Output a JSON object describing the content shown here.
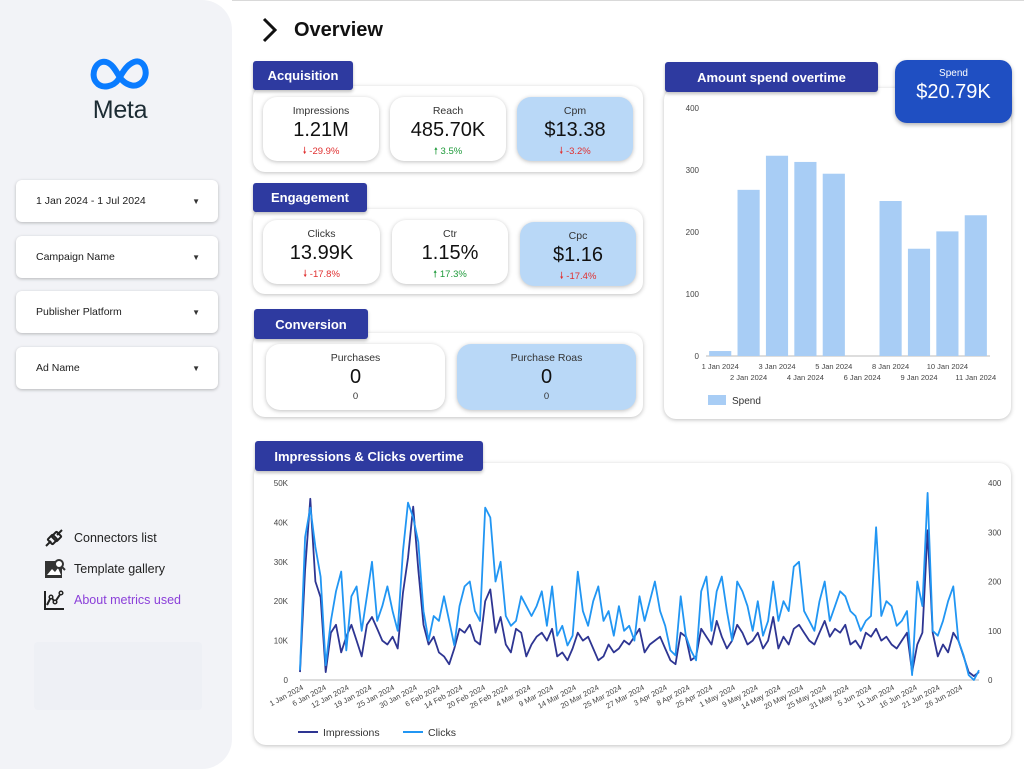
{
  "sidebar": {
    "logo_text": "Meta",
    "filters": [
      "1 Jan 2024 - 1 Jul 2024",
      "Campaign Name",
      "Publisher Platform",
      "Ad Name"
    ],
    "links": [
      {
        "label": "Connectors list",
        "icon": "connector-icon"
      },
      {
        "label": "Template gallery",
        "icon": "gallery-icon"
      },
      {
        "label": "About metrics used",
        "icon": "metrics-chart-icon"
      }
    ]
  },
  "header": {
    "title": "Overview"
  },
  "acquisition": {
    "title": "Acquisition",
    "cards": [
      {
        "label": "Impressions",
        "value": "1.21M",
        "change": "-29.9%",
        "dir": "down"
      },
      {
        "label": "Reach",
        "value": "485.70K",
        "change": "3.5%",
        "dir": "up"
      },
      {
        "label": "Cpm",
        "value": "$13.38",
        "change": "-3.2%",
        "dir": "down"
      }
    ]
  },
  "engagement": {
    "title": "Engagement",
    "cards": [
      {
        "label": "Clicks",
        "value": "13.99K",
        "change": "-17.8%",
        "dir": "down"
      },
      {
        "label": "Ctr",
        "value": "1.15%",
        "change": "17.3%",
        "dir": "up"
      },
      {
        "label": "Cpc",
        "value": "$1.16",
        "change": "-17.4%",
        "dir": "down"
      }
    ]
  },
  "conversion": {
    "title": "Conversion",
    "cards": [
      {
        "label": "Purchases",
        "value": "0",
        "sub": "0"
      },
      {
        "label": "Purchase Roas",
        "value": "0",
        "sub": "0"
      }
    ]
  },
  "spend_kpi": {
    "label": "Spend",
    "value": "$20.79K"
  },
  "colors": {
    "accent": "#2e3aa0",
    "bar": "#a8cdf5",
    "impressions": "#2e3592",
    "clicks": "#2196f3",
    "down": "#e03030",
    "up": "#1e9a3a"
  },
  "chart_data": [
    {
      "type": "bar",
      "title": "Amount spend overtime",
      "categories": [
        "1 Jan 2024",
        "2 Jan 2024",
        "3 Jan 2024",
        "4 Jan 2024",
        "5 Jan 2024",
        "6 Jan 2024",
        "8 Jan 2024",
        "9 Jan 2024",
        "10 Jan 2024",
        "11 Jan 2024"
      ],
      "series": [
        {
          "name": "Spend",
          "values": [
            8,
            268,
            323,
            313,
            294,
            0,
            250,
            173,
            201,
            227
          ]
        }
      ],
      "ylim": [
        0,
        400
      ],
      "yticks": [
        0,
        100,
        200,
        300,
        400
      ],
      "legend": "bottom-left"
    },
    {
      "type": "line",
      "title": "Impressions & Clicks overtime",
      "xticks": [
        "1 Jan 2024",
        "6 Jan 2024",
        "12 Jan 2024",
        "19 Jan 2024",
        "25 Jan 2024",
        "30 Jan 2024",
        "6 Feb 2024",
        "14 Feb 2024",
        "20 Feb 2024",
        "26 Feb 2024",
        "4 Mar 2024",
        "9 Mar 2024",
        "14 Mar 2024",
        "20 Mar 2024",
        "25 Mar 2024",
        "27 Mar 2024",
        "3 Apr 2024",
        "8 Apr 2024",
        "25 Apr 2024",
        "1 May 2024",
        "9 May 2024",
        "14 May 2024",
        "20 May 2024",
        "25 May 2024",
        "31 May 2024",
        "5 Jun 2024",
        "11 Jun 2024",
        "16 Jun 2024",
        "21 Jun 2024",
        "26 Jun 2024"
      ],
      "y_left_ticks": [
        "0",
        "10K",
        "20K",
        "30K",
        "40K",
        "50K"
      ],
      "y_right_ticks": [
        "0",
        "100",
        "200",
        "300",
        "400"
      ],
      "ylim_left": [
        0,
        50000
      ],
      "ylim_right": [
        0,
        400
      ],
      "series": [
        {
          "name": "Impressions",
          "axis": "left",
          "values": [
            2000,
            28000,
            46000,
            25000,
            21000,
            2000,
            12000,
            14000,
            7000,
            11000,
            14000,
            10000,
            6000,
            14000,
            16000,
            13000,
            10000,
            9000,
            11000,
            8000,
            22000,
            31000,
            44000,
            28000,
            14000,
            9000,
            11000,
            7000,
            6000,
            4000,
            8000,
            13000,
            12000,
            14000,
            10000,
            9000,
            20000,
            23000,
            12000,
            16000,
            9000,
            7000,
            13000,
            12000,
            6000,
            9000,
            11000,
            12000,
            10000,
            13000,
            6000,
            7000,
            5000,
            8000,
            12000,
            10000,
            11000,
            8000,
            5000,
            6000,
            9000,
            7000,
            8000,
            10000,
            9000,
            11000,
            13000,
            7000,
            9000,
            10000,
            11000,
            8000,
            5000,
            4000,
            12000,
            11000,
            5000,
            6000,
            13000,
            11000,
            9000,
            15000,
            11000,
            8000,
            10000,
            14000,
            12000,
            9000,
            10000,
            12000,
            8000,
            10000,
            16000,
            8000,
            11000,
            9000,
            13000,
            14000,
            12000,
            10000,
            9000,
            12000,
            15000,
            11000,
            13000,
            12000,
            14000,
            9000,
            10000,
            8000,
            12000,
            11000,
            13000,
            10000,
            11000,
            9000,
            8000,
            10000,
            12000,
            2000,
            9000,
            12000,
            38000,
            12000,
            6000,
            9000,
            7000,
            12000,
            10000,
            6000,
            2000,
            1000,
            2000
          ]
        },
        {
          "name": "Clicks",
          "axis": "right",
          "values": [
            20,
            290,
            350,
            270,
            210,
            30,
            120,
            180,
            220,
            60,
            170,
            190,
            100,
            170,
            240,
            120,
            150,
            190,
            140,
            100,
            260,
            360,
            330,
            280,
            140,
            80,
            130,
            120,
            170,
            120,
            70,
            150,
            190,
            200,
            140,
            120,
            350,
            330,
            200,
            240,
            130,
            110,
            120,
            170,
            150,
            130,
            150,
            180,
            110,
            190,
            90,
            110,
            70,
            90,
            220,
            140,
            110,
            160,
            190,
            120,
            140,
            90,
            150,
            100,
            110,
            80,
            170,
            120,
            160,
            200,
            140,
            110,
            60,
            50,
            170,
            90,
            60,
            40,
            180,
            210,
            100,
            180,
            210,
            140,
            80,
            200,
            180,
            150,
            100,
            160,
            90,
            120,
            200,
            120,
            160,
            140,
            230,
            240,
            140,
            120,
            100,
            160,
            200,
            120,
            150,
            180,
            170,
            140,
            130,
            100,
            120,
            130,
            310,
            130,
            160,
            150,
            110,
            120,
            140,
            10,
            200,
            150,
            380,
            100,
            90,
            120,
            160,
            190,
            80,
            50,
            10,
            0,
            20
          ]
        }
      ],
      "legend": "bottom-left"
    }
  ]
}
